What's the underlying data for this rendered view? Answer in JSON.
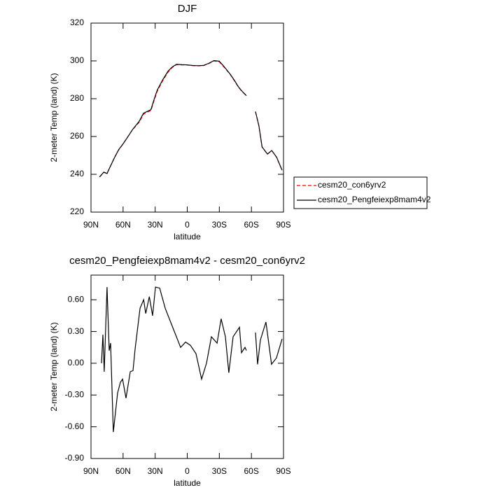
{
  "chart_data": [
    {
      "type": "line",
      "title": "DJF",
      "xlabel": "latitude",
      "ylabel": "2-meter Temp (land) (K)",
      "x": [
        82,
        78,
        75,
        72,
        68,
        64,
        60,
        56,
        51,
        45,
        41,
        37,
        34,
        31,
        28,
        23,
        18,
        14,
        10,
        5,
        0,
        -5,
        -10,
        -15,
        -20,
        -25,
        -30,
        -34,
        -40,
        -44,
        -48,
        -51,
        -55.3,
        -59,
        -63.8,
        -67,
        -70,
        -75,
        -79,
        -83.5,
        -88.7
      ],
      "series": [
        {
          "name": "cesm20_con6yrv2",
          "color": "#ff0000",
          "dash": true,
          "values": [
            238.6,
            241,
            240.5,
            244,
            249,
            253,
            256,
            259.5,
            263.7,
            267.5,
            271.8,
            273,
            273.7,
            279,
            284,
            289.5,
            294,
            296.5,
            298,
            297.9,
            297.8,
            297.5,
            297.4,
            297.5,
            298.5,
            300,
            299.5,
            297,
            293,
            289.6,
            286,
            284,
            281.5,
            null,
            273,
            265.5,
            254.4,
            250.7,
            252.6,
            249,
            242
          ]
        },
        {
          "name": "cesm20_Pengfeiexp8mam4v2",
          "color": "#000000",
          "dash": false,
          "values": [
            238.6,
            241.2,
            240.4,
            244.1,
            248.8,
            253.1,
            256.1,
            259.4,
            263.8,
            268,
            272.3,
            273.4,
            274.2,
            279.6,
            284.6,
            290,
            294.5,
            296.8,
            298.2,
            298,
            297.9,
            297.6,
            297.5,
            297.6,
            298.7,
            300.2,
            299.8,
            297.3,
            293.1,
            289.8,
            286.2,
            284.1,
            281.6,
            null,
            273.2,
            265.6,
            254.5,
            250.7,
            252.6,
            249.1,
            242.2
          ]
        }
      ],
      "xlim": [
        90,
        -90
      ],
      "xticks": [
        {
          "value": 90,
          "label": "90N"
        },
        {
          "value": 60,
          "label": "60N"
        },
        {
          "value": 30,
          "label": "30N"
        },
        0,
        {
          "value": -30,
          "label": "30S"
        },
        {
          "value": -60,
          "label": "60S"
        },
        {
          "value": -90,
          "label": "90S"
        }
      ],
      "ylim": [
        220,
        320
      ],
      "yticks": [
        220,
        240,
        260,
        280,
        300,
        320
      ],
      "legend": "right"
    },
    {
      "type": "line",
      "title": "cesm20_Pengfeiexp8mam4v2 - cesm20_con6yrv2",
      "xlabel": "latitude",
      "ylabel": "2-meter Temp (land) (K)",
      "x": [
        80.2,
        78.9,
        77.6,
        75,
        73,
        71.7,
        69.1,
        65.1,
        62.5,
        60.5,
        57.3,
        53.3,
        50.7,
        48.7,
        44.1,
        40.8,
        38.8,
        35.5,
        32.4,
        29.7,
        25.8,
        20.6,
        12.8,
        6.2,
        1.6,
        -2.9,
        -8.2,
        -13.4,
        -18,
        -22.6,
        -27.9,
        -31.7,
        -35.7,
        -38.9,
        -42.9,
        -48.8,
        -50.7,
        -54,
        -55.3,
        -59,
        -63.8,
        -65.8,
        -68.4,
        -73.6,
        -78.8,
        -83.4,
        -88.7
      ],
      "series": [
        {
          "name": "difference",
          "color": "#000000",
          "dash": false,
          "values": [
            0,
            0.27,
            -0.08,
            0.72,
            0.12,
            0.19,
            -0.65,
            -0.28,
            -0.18,
            -0.15,
            -0.33,
            -0.08,
            -0.07,
            0.14,
            0.52,
            0.6,
            0.47,
            0.63,
            0.45,
            0.72,
            0.71,
            0.52,
            0.32,
            0.15,
            0.2,
            0.17,
            0.09,
            -0.15,
            0,
            0.25,
            0.19,
            0.42,
            0.25,
            -0.09,
            0.25,
            0.34,
            0.1,
            0.15,
            0.12,
            null,
            0.29,
            -0.01,
            0.22,
            0.39,
            -0.01,
            0.05,
            0.23
          ]
        }
      ],
      "xlim": [
        90,
        -90
      ],
      "xticks": [
        {
          "value": 90,
          "label": "90N"
        },
        {
          "value": 60,
          "label": "60N"
        },
        {
          "value": 30,
          "label": "30N"
        },
        0,
        {
          "value": -30,
          "label": "30S"
        },
        {
          "value": -60,
          "label": "60S"
        },
        {
          "value": -90,
          "label": "90S"
        }
      ],
      "ylim": [
        -0.9,
        0.833
      ],
      "yticks": [
        {
          "value": -0.9,
          "label": "-0.90"
        },
        {
          "value": -0.6,
          "label": "-0.60"
        },
        {
          "value": -0.3,
          "label": "-0.30"
        },
        {
          "value": 0,
          "label": "0.00"
        },
        {
          "value": 0.3,
          "label": "0.30"
        },
        {
          "value": 0.6,
          "label": "0.60"
        }
      ]
    }
  ]
}
